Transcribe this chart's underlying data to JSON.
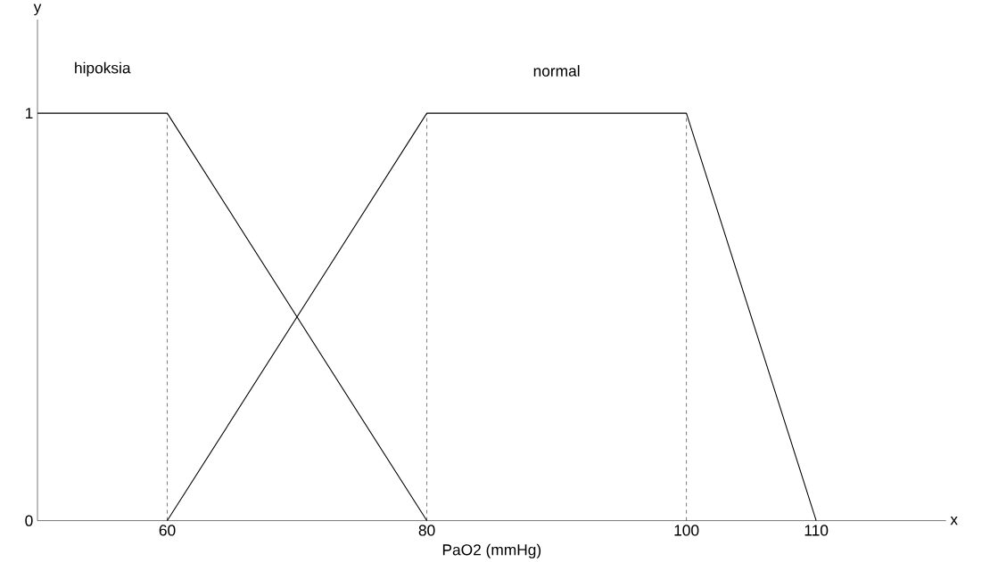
{
  "chart_data": {
    "type": "line",
    "xlabel": "PaO2 (mmHg)",
    "ylabel": "y",
    "annotations": [
      "x"
    ],
    "series": [
      {
        "name": "hipoksia",
        "color": "#000000",
        "x": [
          50,
          60,
          80
        ],
        "values": [
          1,
          1,
          0
        ]
      },
      {
        "name": "normal",
        "color": "#000000",
        "x": [
          60,
          80,
          100,
          110
        ],
        "values": [
          0,
          1,
          1,
          0
        ]
      }
    ],
    "xlim": [
      50,
      120
    ],
    "ylim": [
      0,
      1.23
    ],
    "xticks": [
      60,
      80,
      100,
      110
    ],
    "yticks": [
      0,
      1
    ],
    "ref_lines": [
      {
        "axis": "x",
        "value": 60,
        "line_style": "dashed",
        "color": "#000000"
      },
      {
        "axis": "x",
        "value": 80,
        "line_style": "dashed",
        "color": "#000000"
      },
      {
        "axis": "x",
        "value": 100,
        "line_style": "dashed",
        "color": "#000000"
      }
    ],
    "grid": false,
    "legend": false,
    "marker": "none",
    "line_style": "solid"
  }
}
